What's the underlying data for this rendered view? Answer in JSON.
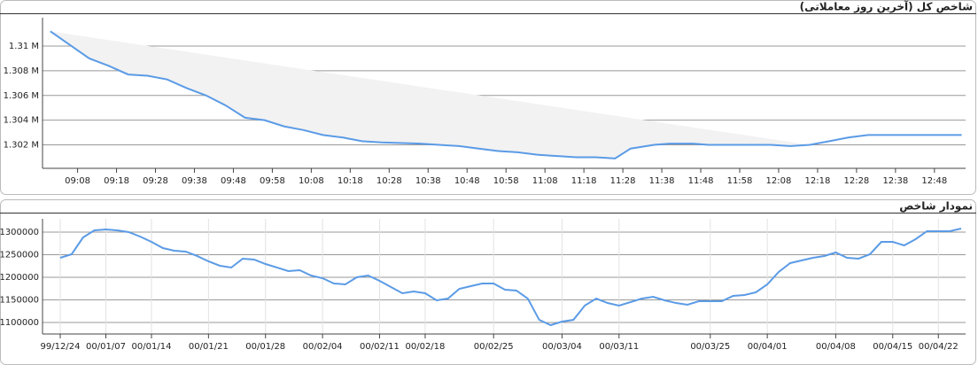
{
  "chart_data": [
    {
      "type": "line",
      "title": "شاخص کل (آخرین روز معاملاتی)",
      "x": [
        "09:01",
        "09:11",
        "09:16",
        "09:21",
        "09:26",
        "09:31",
        "09:36",
        "09:41",
        "09:46",
        "09:51",
        "09:56",
        "10:01",
        "10:06",
        "10:11",
        "10:16",
        "10:21",
        "10:26",
        "10:36",
        "10:46",
        "10:51",
        "10:56",
        "11:01",
        "11:06",
        "11:11",
        "11:16",
        "11:21",
        "11:26",
        "11:30",
        "11:36",
        "11:40",
        "11:46",
        "11:50",
        "11:56",
        "12:02",
        "12:06",
        "12:11",
        "12:16",
        "12:21",
        "12:26",
        "12:31",
        "12:36",
        "12:55"
      ],
      "values": [
        1311200,
        1309000,
        1308400,
        1307700,
        1307600,
        1307300,
        1306600,
        1306000,
        1305200,
        1304200,
        1304000,
        1303500,
        1303200,
        1302800,
        1302600,
        1302300,
        1302200,
        1302100,
        1301900,
        1301700,
        1301500,
        1301400,
        1301200,
        1301100,
        1301000,
        1301000,
        1300900,
        1301700,
        1302000,
        1302100,
        1302100,
        1302000,
        1302000,
        1302000,
        1302000,
        1301900,
        1302000,
        1302300,
        1302600,
        1302800,
        1302800,
        1302800
      ],
      "color": "#5b9be6",
      "xlim": [
        "08:59",
        "12:56"
      ],
      "xticks": [
        "09:08",
        "09:18",
        "09:28",
        "09:38",
        "09:48",
        "09:58",
        "10:08",
        "10:18",
        "10:28",
        "10:38",
        "10:48",
        "10:58",
        "11:08",
        "11:18",
        "11:28",
        "11:38",
        "11:48",
        "11:58",
        "12:08",
        "12:18",
        "12:28",
        "12:38",
        "12:48"
      ],
      "ylim": [
        1300100,
        1312300
      ],
      "yticks": [
        {
          "value": 1302000,
          "label": "1.302 M"
        },
        {
          "value": 1304000,
          "label": "1.304 M"
        },
        {
          "value": 1306000,
          "label": "1.306 M"
        },
        {
          "value": 1308000,
          "label": "1.308 M"
        },
        {
          "value": 1310000,
          "label": "1.31 M"
        }
      ],
      "grid": true
    },
    {
      "type": "line",
      "title": "نمودار شاخص",
      "categories": [
        "99/12/24",
        null,
        null,
        null,
        "00/01/07",
        null,
        null,
        null,
        "00/01/14",
        null,
        null,
        null,
        null,
        "00/01/21",
        null,
        null,
        null,
        null,
        "00/01/28",
        null,
        null,
        null,
        null,
        "00/02/04",
        null,
        null,
        null,
        null,
        "00/02/11",
        null,
        null,
        null,
        "00/02/18",
        null,
        null,
        null,
        null,
        null,
        "00/02/25",
        null,
        null,
        null,
        null,
        null,
        "00/03/04",
        null,
        null,
        null,
        null,
        "00/03/11",
        null,
        null,
        null,
        null,
        null,
        null,
        null,
        "00/03/25",
        null,
        null,
        null,
        null,
        "00/04/01",
        null,
        null,
        null,
        null,
        null,
        "00/04/08",
        null,
        null,
        null,
        null,
        "00/04/15",
        null,
        null,
        null,
        "00/04/22",
        null,
        null
      ],
      "values": [
        1243100,
        1251000,
        1288200,
        1303900,
        1305900,
        1303900,
        1300000,
        1290200,
        1278400,
        1264700,
        1258800,
        1256900,
        1247100,
        1235300,
        1225500,
        1221600,
        1241200,
        1239200,
        1229400,
        1221600,
        1213700,
        1215700,
        1203900,
        1198000,
        1186300,
        1184300,
        1200000,
        1203900,
        1192100,
        1178400,
        1164700,
        1168600,
        1164700,
        1149000,
        1152900,
        1174500,
        1180400,
        1186300,
        1186300,
        1172500,
        1170600,
        1152900,
        1105800,
        1094100,
        1101900,
        1105800,
        1137400,
        1152900,
        1143100,
        1137400,
        1145100,
        1152900,
        1156800,
        1149000,
        1143100,
        1139200,
        1147000,
        1147000,
        1147000,
        1158800,
        1160800,
        1166700,
        1184300,
        1211800,
        1231400,
        1237200,
        1243100,
        1247100,
        1254900,
        1243100,
        1241200,
        1251000,
        1278400,
        1278400,
        1270600,
        1284300,
        1302000,
        1302000,
        1302000,
        1307800
      ],
      "color": "#5b9be6",
      "ylim": [
        1074500,
        1329400
      ],
      "yticks": [
        1100000,
        1150000,
        1200000,
        1250000,
        1300000
      ],
      "grid": true
    }
  ]
}
